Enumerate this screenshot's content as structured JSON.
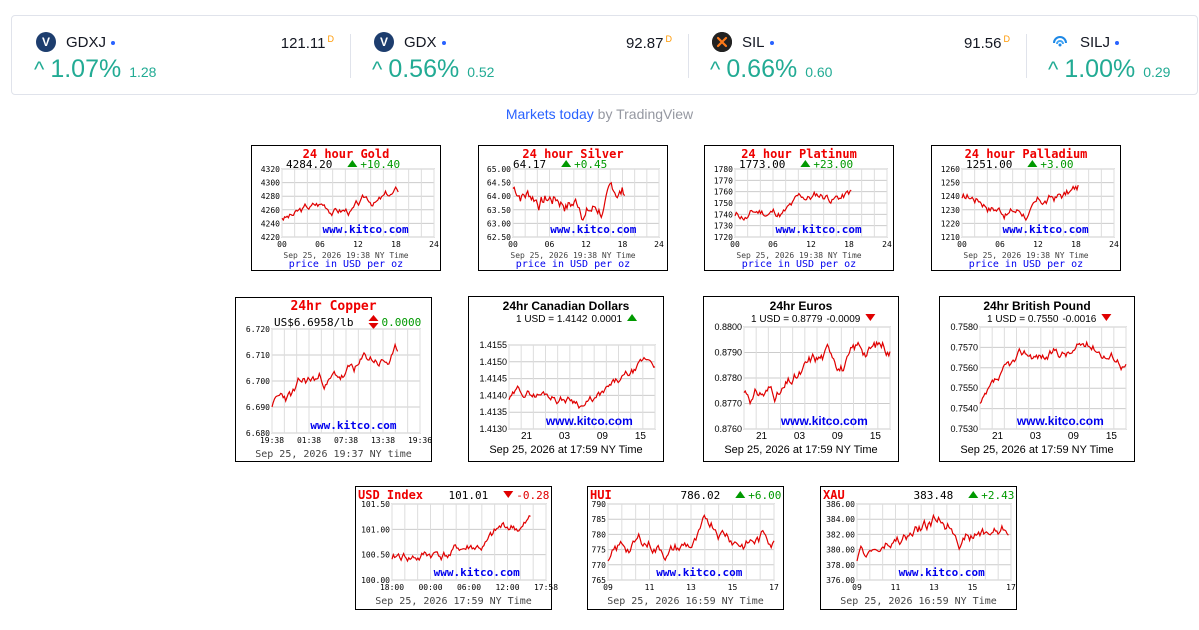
{
  "tickers": [
    {
      "symbol": "GDXJ",
      "price": "121.11",
      "price_flag": "D",
      "change_pct": "1.07%",
      "change_abs": "1.28",
      "logo": "vaneck-logo",
      "logo_color": "#1d3d6e"
    },
    {
      "symbol": "GDX",
      "price": "92.87",
      "price_flag": "D",
      "change_pct": "0.56%",
      "change_abs": "0.52",
      "logo": "vaneck-logo",
      "logo_color": "#1d3d6e"
    },
    {
      "symbol": "SIL",
      "price": "91.56",
      "price_flag": "D",
      "change_pct": "0.66%",
      "change_abs": "0.60",
      "logo": "globalx-logo",
      "logo_color": "#222222"
    },
    {
      "symbol": "SILJ",
      "price": "",
      "price_flag": "",
      "change_pct": "1.00%",
      "change_abs": "0.29",
      "logo": "amplify-logo",
      "logo_color": "#1e88e5"
    }
  ],
  "markets_today": {
    "link_text": "Markets today",
    "by_text": "by TradingView"
  },
  "colors": {
    "up": "#22ab94",
    "brand": "#2962ff",
    "chart_line": "#e00000",
    "chart_up": "#009900",
    "chart_down": "#e00000",
    "kitco": "#0000ee"
  },
  "charts": [
    {
      "title": "24 hour Gold",
      "price": "4284.20",
      "change": "+10.40",
      "dir": "up",
      "yticks": [
        "4320",
        "4300",
        "4280",
        "4260",
        "4240",
        "4220"
      ],
      "xticks": [
        "00",
        "06",
        "12",
        "18",
        "24"
      ],
      "timestamp": "Sep 25, 2026 19:38 NY Time",
      "footer": "price in USD per oz",
      "watermark": "www.kitco.com"
    },
    {
      "title": "24 hour Silver",
      "price": "64.17",
      "change": "+0.45",
      "dir": "up",
      "yticks": [
        "65.00",
        "64.50",
        "64.00",
        "63.50",
        "63.00",
        "62.50"
      ],
      "xticks": [
        "00",
        "06",
        "12",
        "18",
        "24"
      ],
      "timestamp": "Sep 25, 2026 19:38 NY Time",
      "footer": "price in USD per oz",
      "watermark": "www.kitco.com"
    },
    {
      "title": "24 hour Platinum",
      "price": "1773.00",
      "change": "+23.00",
      "dir": "up",
      "yticks": [
        "1780",
        "1770",
        "1760",
        "1750",
        "1740",
        "1730",
        "1720"
      ],
      "xticks": [
        "00",
        "06",
        "12",
        "18",
        "24"
      ],
      "timestamp": "Sep 25, 2026 19:38 NY Time",
      "footer": "price in USD per oz",
      "watermark": "www.kitco.com"
    },
    {
      "title": "24 hour Palladium",
      "price": "1251.00",
      "change": "+3.00",
      "dir": "up",
      "yticks": [
        "1260",
        "1250",
        "1240",
        "1230",
        "1220",
        "1210"
      ],
      "xticks": [
        "00",
        "06",
        "12",
        "18",
        "24"
      ],
      "timestamp": "Sep 25, 2026 19:38 NY Time",
      "footer": "price in USD per oz",
      "watermark": "www.kitco.com"
    },
    {
      "title": "24hr Copper",
      "price": "US$6.6958/lb",
      "change": "0.0000",
      "dir": "flat",
      "yticks": [
        "6.720",
        "6.710",
        "6.700",
        "6.690",
        "6.680"
      ],
      "xticks": [
        "19:38",
        "01:38",
        "07:38",
        "13:38",
        "19:36"
      ],
      "timestamp": "Sep 25, 2026 19:37 NY time",
      "footer": "",
      "watermark": "www.kitco.com"
    },
    {
      "title": "24hr Canadian Dollars",
      "price": "1 USD = 1.4142",
      "change": "0.0001",
      "dir": "up",
      "yticks": [
        "1.4155",
        "1.4150",
        "1.4145",
        "1.4140",
        "1.4135",
        "1.4130"
      ],
      "xticks": [
        "21",
        "03",
        "09",
        "15"
      ],
      "timestamp": "Sep 25, 2026 at 17:59 NY Time",
      "footer": "",
      "watermark": "www.kitco.com"
    },
    {
      "title": "24hr Euros",
      "price": "1 USD = 0.8779",
      "change": "-0.0009",
      "dir": "down",
      "yticks": [
        "0.8800",
        "0.8790",
        "0.8780",
        "0.8770",
        "0.8760"
      ],
      "xticks": [
        "21",
        "03",
        "09",
        "15"
      ],
      "timestamp": "Sep 25, 2026 at 17:59 NY Time",
      "footer": "",
      "watermark": "www.kitco.com"
    },
    {
      "title": "24hr British Pound",
      "price": "1 USD = 0.7550",
      "change": "-0.0016",
      "dir": "down",
      "yticks": [
        "0.7580",
        "0.7570",
        "0.7560",
        "0.7550",
        "0.7540",
        "0.7530"
      ],
      "xticks": [
        "21",
        "03",
        "09",
        "15"
      ],
      "timestamp": "Sep 25, 2026 at 17:59 NY Time",
      "footer": "",
      "watermark": "www.kitco.com"
    },
    {
      "title": "USD Index",
      "price": "101.01",
      "change": "-0.28",
      "dir": "down",
      "yticks": [
        "101.50",
        "101.00",
        "100.50",
        "100.00"
      ],
      "xticks": [
        "18:00",
        "00:00",
        "06:00",
        "12:00",
        "17:58"
      ],
      "timestamp": "Sep 25, 2026 17:59 NY Time",
      "footer": "",
      "watermark": "www.kitco.com"
    },
    {
      "title": "HUI",
      "price": "786.02",
      "change": "+6.00",
      "dir": "up",
      "yticks": [
        "790",
        "785",
        "780",
        "775",
        "770",
        "765"
      ],
      "xticks": [
        "09",
        "11",
        "13",
        "15",
        "17"
      ],
      "timestamp": "Sep 25, 2026 16:59 NY Time",
      "footer": "",
      "watermark": "www.kitco.com"
    },
    {
      "title": "XAU",
      "price": "383.48",
      "change": "+2.43",
      "dir": "up",
      "yticks": [
        "386.00",
        "384.00",
        "382.00",
        "380.00",
        "378.00",
        "376.00"
      ],
      "xticks": [
        "09",
        "11",
        "13",
        "15",
        "17"
      ],
      "timestamp": "Sep 25, 2026 16:59 NY Time",
      "footer": "",
      "watermark": "www.kitco.com"
    }
  ]
}
